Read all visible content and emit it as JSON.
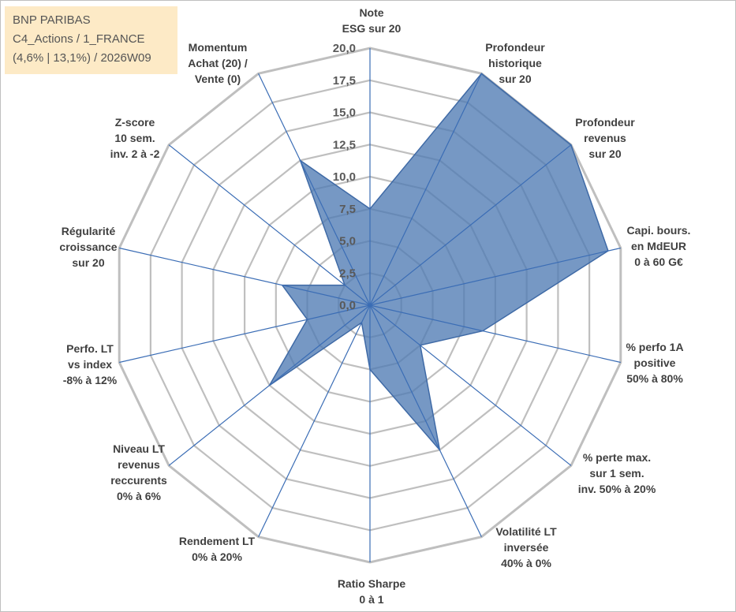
{
  "info_box": {
    "lines": [
      "BNP PARIBAS",
      "C4_Actions / 1_FRANCE",
      "(4,6% | 13,1%) / 2026W09"
    ]
  },
  "chart_data": {
    "type": "radar",
    "title": "",
    "scale": {
      "min": 0,
      "max": 20,
      "step": 2.5
    },
    "tick_labels": [
      "0,0",
      "2,5",
      "5,0",
      "7,5",
      "10,0",
      "12,5",
      "15,0",
      "17,5",
      "20,0"
    ],
    "axes": [
      {
        "label": [
          "Note",
          "ESG sur 20"
        ],
        "value": 7.5
      },
      {
        "label": [
          "Profondeur",
          "historique",
          "sur 20"
        ],
        "value": 20.0
      },
      {
        "label": [
          "Profondeur",
          "revenus",
          "sur 20"
        ],
        "value": 20.0
      },
      {
        "label": [
          "Capi. bours.",
          "en MdEUR",
          "0 à 60 G€"
        ],
        "value": 19.0
      },
      {
        "label": [
          "% perfo 1A",
          "positive",
          "50% à 80%"
        ],
        "value": 9.0
      },
      {
        "label": [
          "% perte max.",
          "sur 1 sem.",
          "inv. 50% à 20%"
        ],
        "value": 5.0
      },
      {
        "label": [
          "Volatilité LT",
          "inversée",
          "40% à 0%"
        ],
        "value": 12.5
      },
      {
        "label": [
          "Ratio Sharpe",
          "0 à 1"
        ],
        "value": 5.0
      },
      {
        "label": [
          "Rendement LT",
          "0% à 20%"
        ],
        "value": 1.5
      },
      {
        "label": [
          "Niveau LT",
          "revenus",
          "reccurents",
          "0% à 6%"
        ],
        "value": 10.0
      },
      {
        "label": [
          "Perfo. LT",
          "vs index",
          "-8% à 12%"
        ],
        "value": 5.0
      },
      {
        "label": [
          "Régularité",
          "croissance",
          "sur 20"
        ],
        "value": 7.0
      },
      {
        "label": [
          "Z-score",
          "10 sem.",
          "inv. 2 à -2"
        ],
        "value": 2.5
      },
      {
        "label": [
          "Momentum",
          "Achat (20) /",
          "Vente (0)"
        ],
        "value": 12.5
      }
    ],
    "series": [
      {
        "values": [
          7.5,
          20.0,
          20.0,
          19.0,
          9.0,
          5.0,
          12.5,
          5.0,
          1.5,
          10.0,
          5.0,
          7.0,
          2.5,
          12.5
        ]
      }
    ],
    "colors": {
      "fill": "#4f7bb4",
      "stroke": "#3f6aa6",
      "grid": "#bfbfbf",
      "axis": "#3b6db5"
    }
  }
}
